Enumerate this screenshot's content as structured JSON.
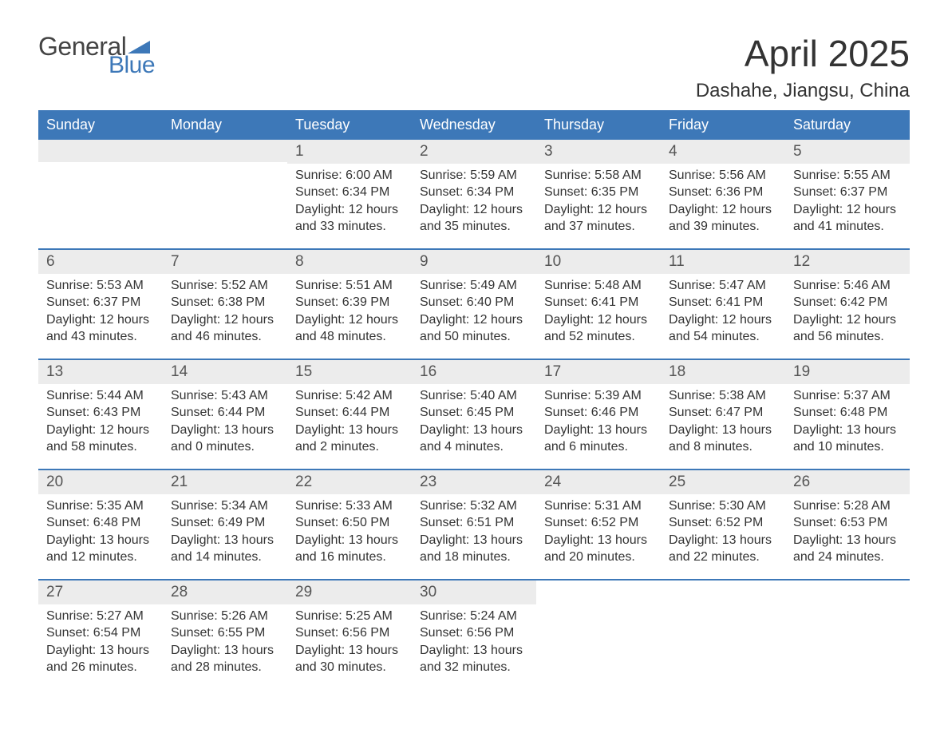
{
  "brand": {
    "general": "General",
    "blue": "Blue"
  },
  "title": {
    "month": "April 2025",
    "location": "Dashahe, Jiangsu, China"
  },
  "colors": {
    "header_bg": "#3d78b8",
    "header_text": "#ffffff",
    "daynum_bg": "#ececec",
    "daynum_text": "#555555",
    "body_text": "#333333",
    "week_border": "#3d78b8",
    "page_bg": "#ffffff",
    "logo_blue": "#3d78b8"
  },
  "typography": {
    "month_title_fontsize": 46,
    "location_fontsize": 24,
    "header_fontsize": 18,
    "daynum_fontsize": 19,
    "body_fontsize": 16,
    "logo_fontsize": 32
  },
  "layout": {
    "columns": 7,
    "type": "calendar",
    "aspect": "1188x918"
  },
  "day_headers": [
    "Sunday",
    "Monday",
    "Tuesday",
    "Wednesday",
    "Thursday",
    "Friday",
    "Saturday"
  ],
  "labels": {
    "sunrise": "Sunrise: ",
    "sunset": "Sunset: ",
    "daylight_prefix": "Daylight: "
  },
  "weeks": [
    [
      null,
      null,
      {
        "n": "1",
        "sunrise": "6:00 AM",
        "sunset": "6:34 PM",
        "daylight": "12 hours and 33 minutes."
      },
      {
        "n": "2",
        "sunrise": "5:59 AM",
        "sunset": "6:34 PM",
        "daylight": "12 hours and 35 minutes."
      },
      {
        "n": "3",
        "sunrise": "5:58 AM",
        "sunset": "6:35 PM",
        "daylight": "12 hours and 37 minutes."
      },
      {
        "n": "4",
        "sunrise": "5:56 AM",
        "sunset": "6:36 PM",
        "daylight": "12 hours and 39 minutes."
      },
      {
        "n": "5",
        "sunrise": "5:55 AM",
        "sunset": "6:37 PM",
        "daylight": "12 hours and 41 minutes."
      }
    ],
    [
      {
        "n": "6",
        "sunrise": "5:53 AM",
        "sunset": "6:37 PM",
        "daylight": "12 hours and 43 minutes."
      },
      {
        "n": "7",
        "sunrise": "5:52 AM",
        "sunset": "6:38 PM",
        "daylight": "12 hours and 46 minutes."
      },
      {
        "n": "8",
        "sunrise": "5:51 AM",
        "sunset": "6:39 PM",
        "daylight": "12 hours and 48 minutes."
      },
      {
        "n": "9",
        "sunrise": "5:49 AM",
        "sunset": "6:40 PM",
        "daylight": "12 hours and 50 minutes."
      },
      {
        "n": "10",
        "sunrise": "5:48 AM",
        "sunset": "6:41 PM",
        "daylight": "12 hours and 52 minutes."
      },
      {
        "n": "11",
        "sunrise": "5:47 AM",
        "sunset": "6:41 PM",
        "daylight": "12 hours and 54 minutes."
      },
      {
        "n": "12",
        "sunrise": "5:46 AM",
        "sunset": "6:42 PM",
        "daylight": "12 hours and 56 minutes."
      }
    ],
    [
      {
        "n": "13",
        "sunrise": "5:44 AM",
        "sunset": "6:43 PM",
        "daylight": "12 hours and 58 minutes."
      },
      {
        "n": "14",
        "sunrise": "5:43 AM",
        "sunset": "6:44 PM",
        "daylight": "13 hours and 0 minutes."
      },
      {
        "n": "15",
        "sunrise": "5:42 AM",
        "sunset": "6:44 PM",
        "daylight": "13 hours and 2 minutes."
      },
      {
        "n": "16",
        "sunrise": "5:40 AM",
        "sunset": "6:45 PM",
        "daylight": "13 hours and 4 minutes."
      },
      {
        "n": "17",
        "sunrise": "5:39 AM",
        "sunset": "6:46 PM",
        "daylight": "13 hours and 6 minutes."
      },
      {
        "n": "18",
        "sunrise": "5:38 AM",
        "sunset": "6:47 PM",
        "daylight": "13 hours and 8 minutes."
      },
      {
        "n": "19",
        "sunrise": "5:37 AM",
        "sunset": "6:48 PM",
        "daylight": "13 hours and 10 minutes."
      }
    ],
    [
      {
        "n": "20",
        "sunrise": "5:35 AM",
        "sunset": "6:48 PM",
        "daylight": "13 hours and 12 minutes."
      },
      {
        "n": "21",
        "sunrise": "5:34 AM",
        "sunset": "6:49 PM",
        "daylight": "13 hours and 14 minutes."
      },
      {
        "n": "22",
        "sunrise": "5:33 AM",
        "sunset": "6:50 PM",
        "daylight": "13 hours and 16 minutes."
      },
      {
        "n": "23",
        "sunrise": "5:32 AM",
        "sunset": "6:51 PM",
        "daylight": "13 hours and 18 minutes."
      },
      {
        "n": "24",
        "sunrise": "5:31 AM",
        "sunset": "6:52 PM",
        "daylight": "13 hours and 20 minutes."
      },
      {
        "n": "25",
        "sunrise": "5:30 AM",
        "sunset": "6:52 PM",
        "daylight": "13 hours and 22 minutes."
      },
      {
        "n": "26",
        "sunrise": "5:28 AM",
        "sunset": "6:53 PM",
        "daylight": "13 hours and 24 minutes."
      }
    ],
    [
      {
        "n": "27",
        "sunrise": "5:27 AM",
        "sunset": "6:54 PM",
        "daylight": "13 hours and 26 minutes."
      },
      {
        "n": "28",
        "sunrise": "5:26 AM",
        "sunset": "6:55 PM",
        "daylight": "13 hours and 28 minutes."
      },
      {
        "n": "29",
        "sunrise": "5:25 AM",
        "sunset": "6:56 PM",
        "daylight": "13 hours and 30 minutes."
      },
      {
        "n": "30",
        "sunrise": "5:24 AM",
        "sunset": "6:56 PM",
        "daylight": "13 hours and 32 minutes."
      },
      null,
      null,
      null
    ]
  ]
}
